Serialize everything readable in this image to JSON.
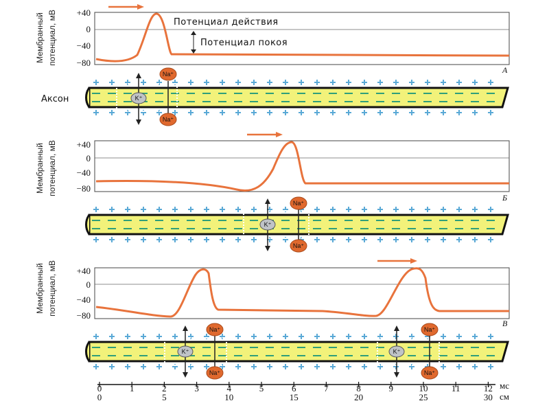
{
  "y_axis": {
    "label_line1": "Мембранный",
    "label_line2": "потенциал, мВ",
    "ticks": [
      "+40",
      "0",
      "−40",
      "−80"
    ]
  },
  "annotations": {
    "action_potential": "Потенциал действия",
    "resting_potential": "Потенциал покоя",
    "axon": "Аксон"
  },
  "panels": [
    {
      "letter": "А",
      "spike_positions_ms": [
        1.8
      ]
    },
    {
      "letter": "Б",
      "spike_positions_ms": [
        5.8
      ]
    },
    {
      "letter": "В",
      "spike_positions_ms": [
        3.2,
        9.8
      ]
    }
  ],
  "ions": {
    "na": "Na⁺",
    "k": "K⁺"
  },
  "scale": {
    "time_ticks": [
      "0",
      "1",
      "2",
      "3",
      "4",
      "5",
      "6",
      "7",
      "8",
      "9",
      "10",
      "11",
      "12"
    ],
    "time_unit": "мс",
    "distance_ticks": [
      "0",
      "5",
      "10",
      "15",
      "20",
      "25",
      "30"
    ],
    "distance_unit": "см"
  },
  "colors": {
    "trace": "#e8733c",
    "axon_fill": "#f2f27a",
    "axon_stroke": "#111111",
    "plus_sign": "#5aa9d6",
    "minus_sign": "#2f9f7a",
    "na_fill": "#e0692e",
    "k_fill": "#bfc3c7"
  }
}
